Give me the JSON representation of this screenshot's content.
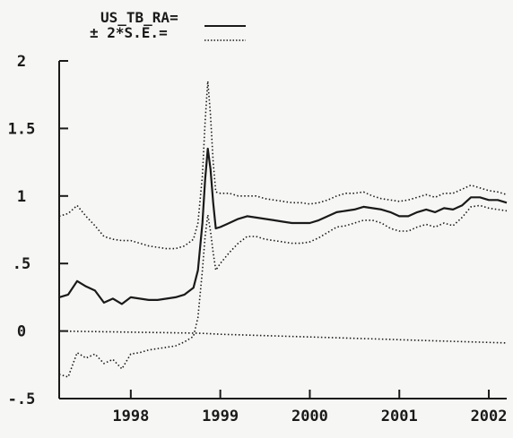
{
  "chart_data": {
    "type": "line",
    "title": "",
    "xlabel": "",
    "ylabel": "",
    "xlim": [
      1997.2,
      2002.2
    ],
    "ylim": [
      -0.5,
      2
    ],
    "grid": false,
    "legend": {
      "placement": "top",
      "entries": [
        {
          "label": "US_TB_RA=",
          "style": "solid"
        },
        {
          "label": "± 2*S.E.=",
          "style": "dotted"
        }
      ]
    },
    "x_ticks": [
      {
        "value": 1998,
        "label": "1998"
      },
      {
        "value": 1999,
        "label": "1999"
      },
      {
        "value": 2000,
        "label": "2000"
      },
      {
        "value": 2001,
        "label": "2001"
      },
      {
        "value": 2002,
        "label": "2002"
      }
    ],
    "y_ticks": [
      {
        "value": 2,
        "label": "2"
      },
      {
        "value": 1.5,
        "label": "1.5"
      },
      {
        "value": 1,
        "label": "1"
      },
      {
        "value": 0.5,
        "label": ".5"
      },
      {
        "value": 0,
        "label": "0"
      },
      {
        "value": -0.5,
        "label": "-.5"
      }
    ],
    "x": [
      1997.2,
      1997.3,
      1997.4,
      1997.5,
      1997.6,
      1997.7,
      1997.8,
      1997.9,
      1998.0,
      1998.1,
      1998.2,
      1998.3,
      1998.4,
      1998.5,
      1998.6,
      1998.7,
      1998.75,
      1998.8,
      1998.83,
      1998.86,
      1998.89,
      1998.92,
      1998.95,
      1999.0,
      1999.1,
      1999.2,
      1999.3,
      1999.4,
      1999.5,
      1999.6,
      1999.7,
      1999.8,
      1999.9,
      2000.0,
      2000.1,
      2000.2,
      2000.3,
      2000.4,
      2000.5,
      2000.6,
      2000.7,
      2000.8,
      2000.9,
      2001.0,
      2001.1,
      2001.2,
      2001.3,
      2001.4,
      2001.5,
      2001.6,
      2001.7,
      2001.8,
      2001.9,
      2002.0,
      2002.1,
      2002.2
    ],
    "series": [
      {
        "name": "US_TB_RA",
        "style": "solid",
        "values": [
          0.25,
          0.27,
          0.37,
          0.33,
          0.3,
          0.21,
          0.24,
          0.2,
          0.25,
          0.24,
          0.23,
          0.23,
          0.24,
          0.25,
          0.27,
          0.32,
          0.45,
          0.8,
          1.12,
          1.35,
          1.2,
          0.95,
          0.76,
          0.77,
          0.8,
          0.83,
          0.85,
          0.84,
          0.83,
          0.82,
          0.81,
          0.8,
          0.8,
          0.8,
          0.82,
          0.85,
          0.88,
          0.89,
          0.9,
          0.92,
          0.91,
          0.9,
          0.88,
          0.85,
          0.85,
          0.88,
          0.9,
          0.88,
          0.91,
          0.9,
          0.93,
          0.99,
          0.99,
          0.97,
          0.97,
          0.95
        ]
      },
      {
        "name": "+2*S.E.",
        "style": "dotted",
        "values": [
          0.85,
          0.87,
          0.93,
          0.85,
          0.78,
          0.7,
          0.68,
          0.67,
          0.67,
          0.65,
          0.63,
          0.62,
          0.61,
          0.61,
          0.63,
          0.68,
          0.8,
          1.15,
          1.55,
          1.85,
          1.6,
          1.25,
          1.03,
          1.02,
          1.02,
          1.0,
          1.0,
          1.0,
          0.98,
          0.97,
          0.96,
          0.95,
          0.95,
          0.94,
          0.95,
          0.97,
          1.0,
          1.02,
          1.02,
          1.03,
          1.0,
          0.98,
          0.97,
          0.96,
          0.97,
          0.99,
          1.01,
          0.99,
          1.02,
          1.02,
          1.05,
          1.08,
          1.06,
          1.04,
          1.03,
          1.01
        ]
      },
      {
        "name": "-2*S.E.",
        "style": "dotted",
        "values": [
          -0.32,
          -0.34,
          -0.16,
          -0.2,
          -0.17,
          -0.24,
          -0.21,
          -0.28,
          -0.17,
          -0.16,
          -0.14,
          -0.13,
          -0.12,
          -0.11,
          -0.08,
          -0.04,
          0.1,
          0.45,
          0.7,
          0.86,
          0.74,
          0.58,
          0.45,
          0.5,
          0.58,
          0.65,
          0.7,
          0.7,
          0.68,
          0.67,
          0.66,
          0.65,
          0.65,
          0.66,
          0.69,
          0.73,
          0.77,
          0.78,
          0.8,
          0.82,
          0.82,
          0.8,
          0.76,
          0.74,
          0.74,
          0.77,
          0.79,
          0.77,
          0.8,
          0.78,
          0.84,
          0.92,
          0.93,
          0.91,
          0.9,
          0.89
        ]
      },
      {
        "name": "zero-reference",
        "style": "dotted",
        "values": [
          0.0,
          -0.001,
          -0.002,
          -0.003,
          -0.004,
          -0.005,
          -0.006,
          -0.007,
          -0.008,
          -0.009,
          -0.01,
          -0.011,
          -0.012,
          -0.013,
          -0.014,
          -0.015,
          -0.016,
          -0.017,
          -0.018,
          -0.019,
          -0.02,
          -0.021,
          -0.022,
          -0.024,
          -0.026,
          -0.028,
          -0.03,
          -0.032,
          -0.034,
          -0.036,
          -0.038,
          -0.04,
          -0.042,
          -0.044,
          -0.046,
          -0.048,
          -0.05,
          -0.052,
          -0.054,
          -0.056,
          -0.058,
          -0.06,
          -0.062,
          -0.064,
          -0.066,
          -0.068,
          -0.07,
          -0.072,
          -0.074,
          -0.076,
          -0.078,
          -0.08,
          -0.082,
          -0.084,
          -0.086,
          -0.088
        ]
      }
    ]
  }
}
